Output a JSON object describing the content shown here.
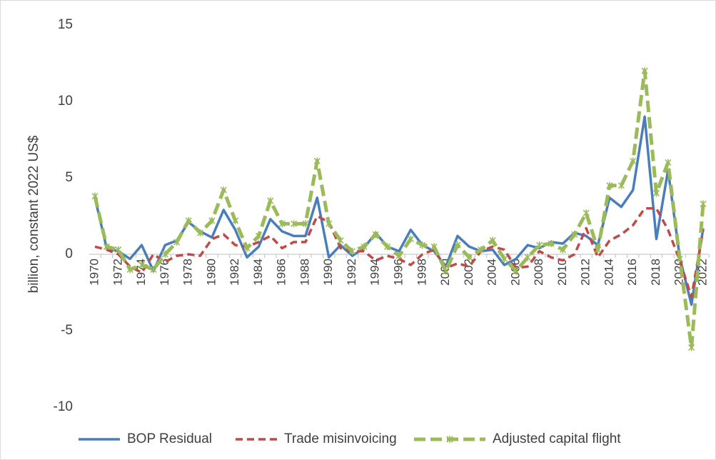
{
  "chart_data": {
    "type": "line",
    "y_label": "billion, constant 2022 US$",
    "categories": [
      "1970",
      null,
      "1972",
      null,
      "1974",
      null,
      "1976",
      null,
      "1978",
      null,
      "1980",
      null,
      "1982",
      null,
      "1984",
      null,
      "1986",
      null,
      "1988",
      null,
      "1990",
      null,
      "1992",
      null,
      "1994",
      null,
      "1996",
      null,
      "1998",
      null,
      "2000",
      null,
      "2002",
      null,
      "2004",
      null,
      "2006",
      null,
      "2008",
      null,
      "2010",
      null,
      "2012",
      null,
      "2014",
      null,
      "2016",
      null,
      "2018",
      null,
      "2020",
      null,
      "2022"
    ],
    "series": [
      {
        "name": "BOP Residual",
        "color": "#4a7ebb",
        "dash": "solid",
        "values": [
          3.7,
          0.4,
          0.2,
          -0.3,
          0.6,
          -1.1,
          0.6,
          0.9,
          2.1,
          1.5,
          1.1,
          2.9,
          1.6,
          -0.2,
          0.5,
          2.3,
          1.5,
          1.2,
          1.2,
          3.7,
          -0.2,
          0.6,
          -0.1,
          0.4,
          1.4,
          0.5,
          0.2,
          1.6,
          0.6,
          0.2,
          -0.8,
          1.2,
          0.5,
          0.2,
          0.3,
          -0.7,
          -0.3,
          0.6,
          0.4,
          0.8,
          0.7,
          1.4,
          1.2,
          0.6,
          3.7,
          3.1,
          4.2,
          9.0,
          1.0,
          5.5,
          -0.2,
          -3.3,
          1.7
        ]
      },
      {
        "name": "Trade misinvoicing",
        "color": "#be4b48",
        "dash": "dashed",
        "values": [
          0.5,
          0.3,
          0.0,
          -0.8,
          -1.2,
          0.0,
          -0.5,
          -0.1,
          0.0,
          -0.1,
          1.0,
          1.3,
          0.6,
          0.5,
          0.8,
          1.2,
          0.4,
          0.8,
          0.8,
          2.5,
          2.1,
          0.4,
          0.2,
          0.2,
          -0.4,
          -0.1,
          -0.3,
          -0.7,
          0.0,
          0.3,
          -0.9,
          -0.6,
          -0.8,
          0.2,
          0.5,
          0.3,
          -0.9,
          -0.8,
          0.2,
          -0.2,
          -0.4,
          0.0,
          1.7,
          -0.2,
          0.9,
          1.3,
          1.9,
          3.0,
          3.0,
          1.6,
          -0.4,
          -2.8,
          1.6
        ]
      },
      {
        "name": "Adjusted capital flight",
        "color": "#9bbb59",
        "dash": "longdash-markers",
        "values": [
          3.8,
          0.5,
          0.3,
          -1.0,
          -0.7,
          -1.0,
          0.0,
          0.8,
          2.2,
          1.4,
          2.2,
          4.2,
          2.2,
          0.4,
          1.2,
          3.5,
          2.0,
          2.0,
          2.0,
          6.1,
          2.0,
          0.9,
          0.2,
          0.5,
          1.3,
          0.5,
          -0.1,
          1.0,
          0.6,
          0.5,
          -1.1,
          0.6,
          -0.2,
          0.3,
          0.9,
          -0.3,
          -1.1,
          -0.2,
          0.6,
          0.7,
          0.3,
          1.3,
          2.7,
          0.3,
          4.5,
          4.5,
          6.1,
          12.0,
          4.0,
          6.0,
          -0.3,
          -6.1,
          3.3
        ]
      }
    ],
    "ylim": [
      -10,
      15
    ],
    "yticks": [
      -10,
      -5,
      0,
      5,
      10,
      15
    ],
    "grid": false,
    "legend": "bottom"
  }
}
